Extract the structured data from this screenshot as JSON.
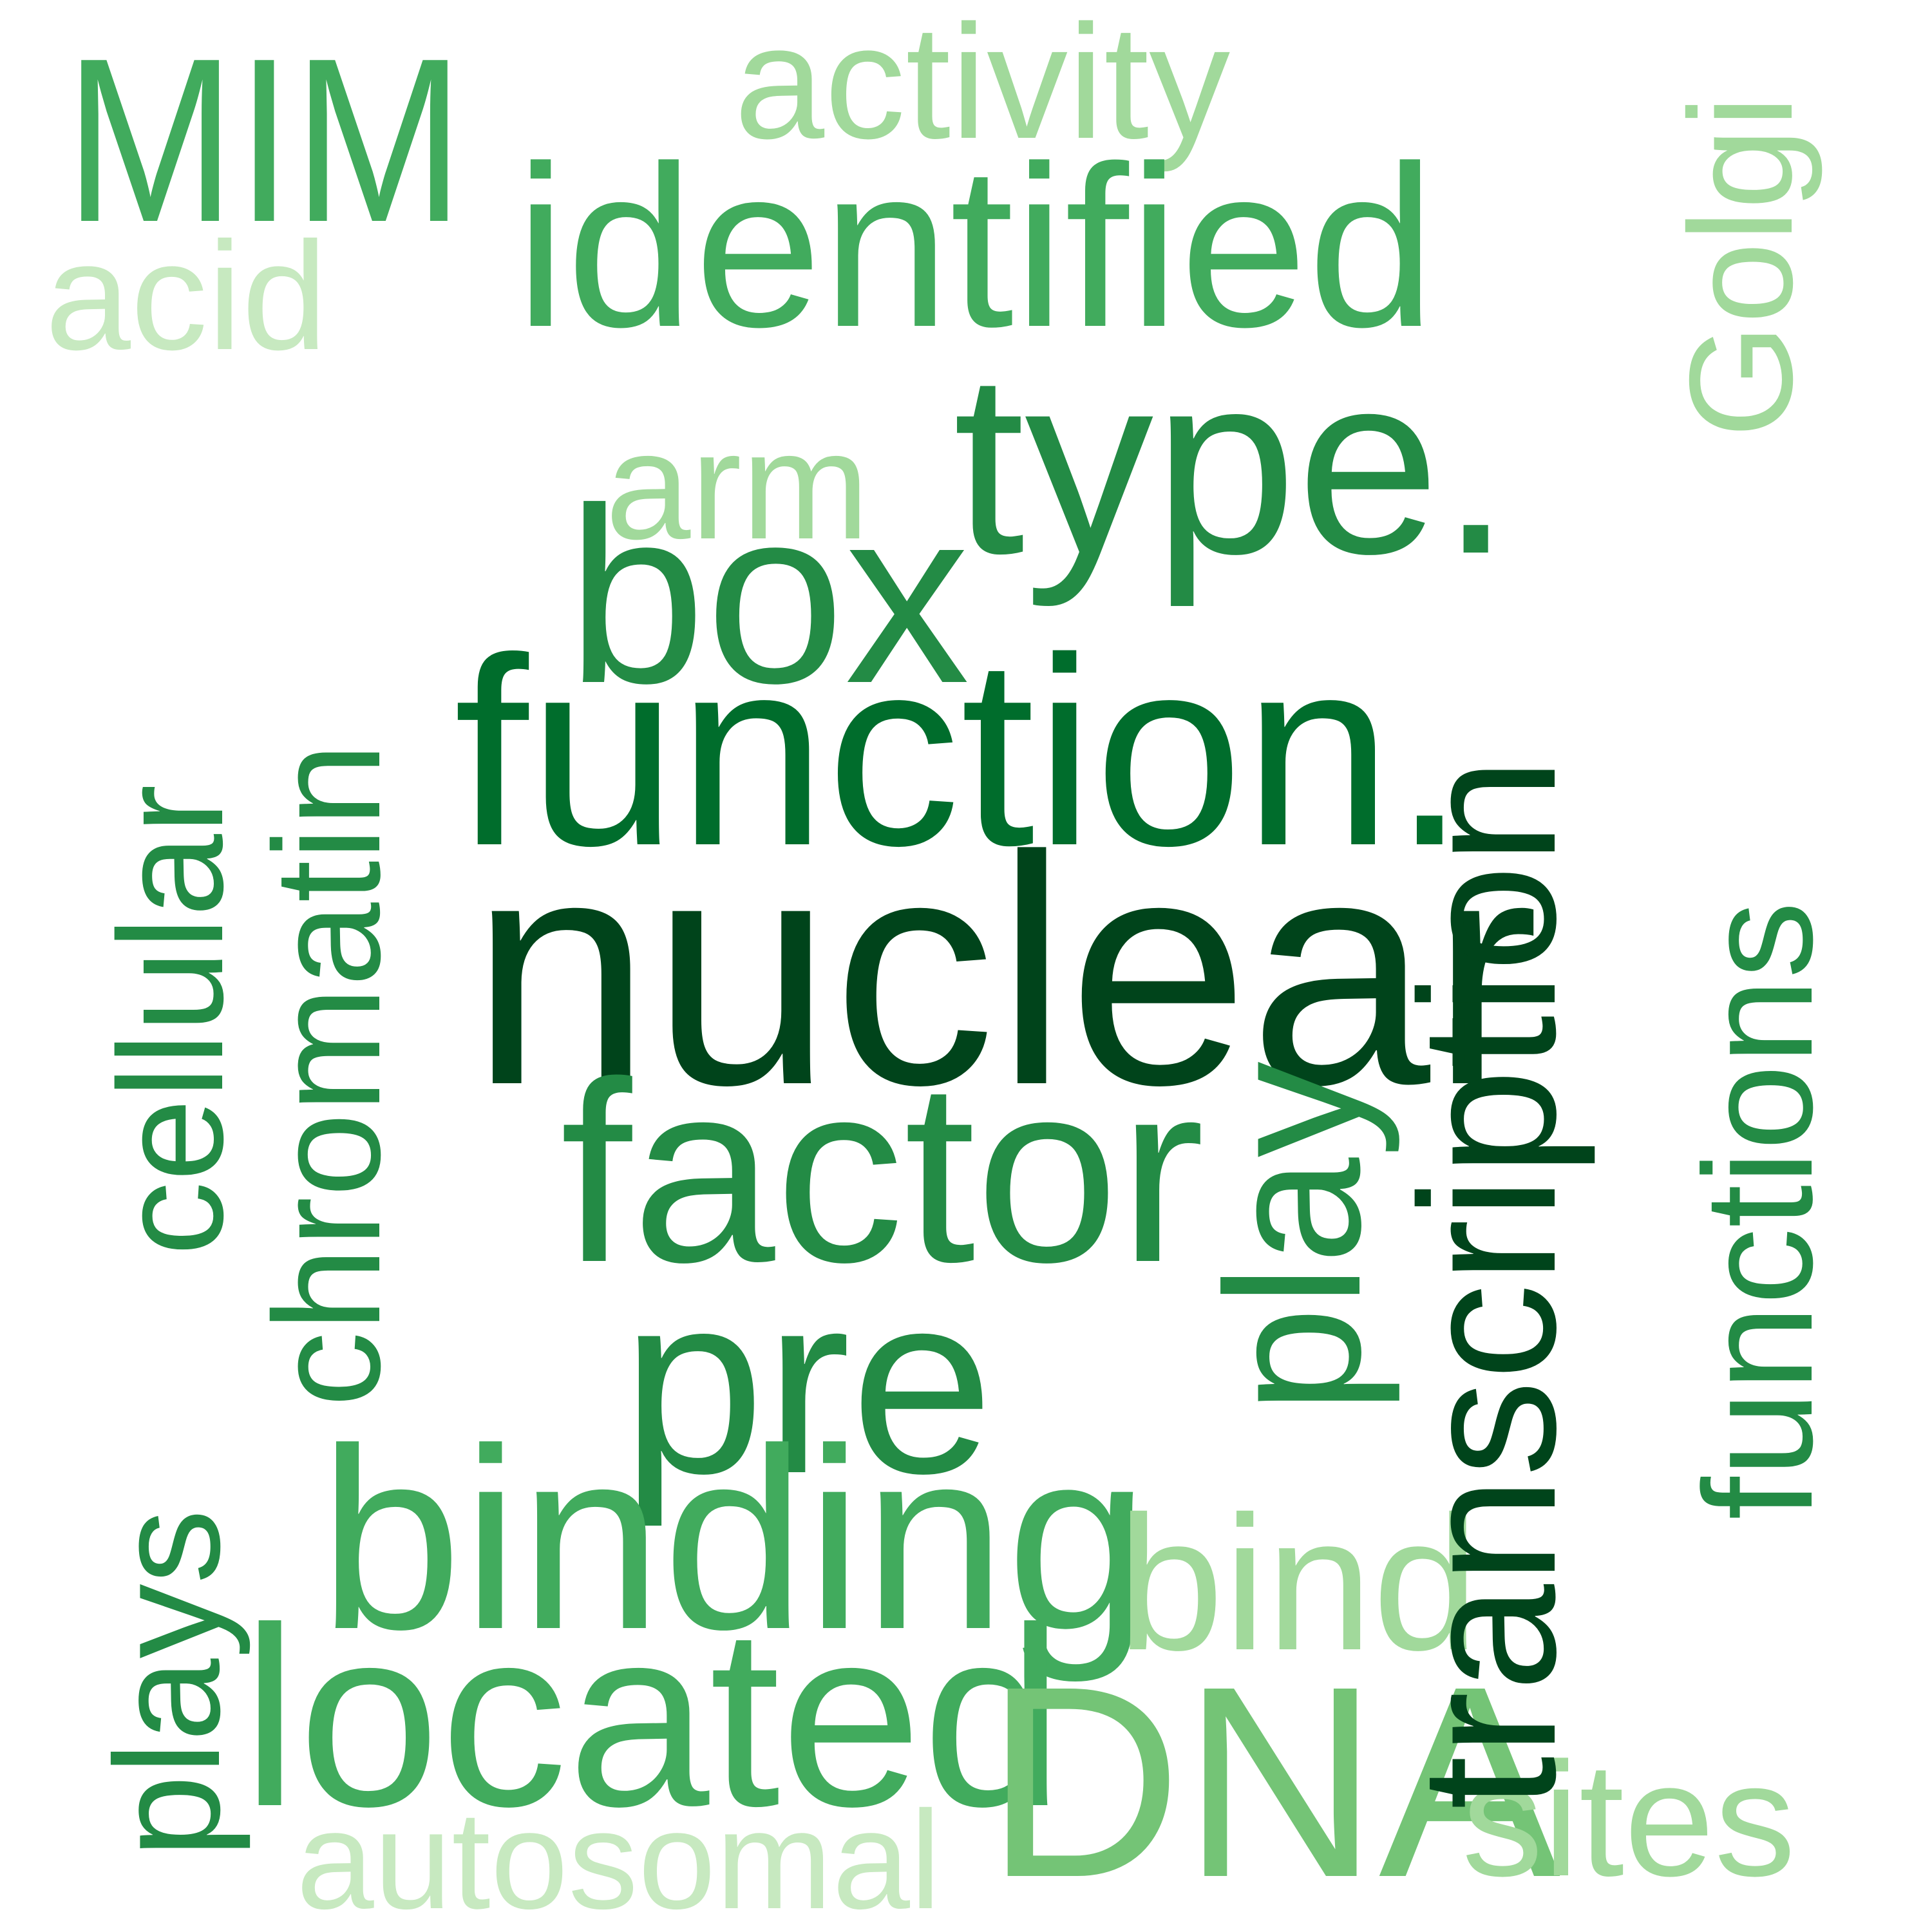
{
  "words": {
    "mim": {
      "text": "MIM",
      "color": "#41ab5d"
    },
    "activity": {
      "text": "activity",
      "color": "#a1d99b"
    },
    "golgi": {
      "text": "Golgi",
      "color": "#a1d99b"
    },
    "identified": {
      "text": "identified",
      "color": "#41ab5d"
    },
    "transcription": {
      "text": "transcription",
      "color": "#00441b"
    },
    "acid": {
      "text": "acid",
      "color": "#c7e9c0"
    },
    "chromatin": {
      "text": "chromatin",
      "color": "#238b45"
    },
    "cellular": {
      "text": "cellular",
      "color": "#238b45"
    },
    "arm": {
      "text": "arm",
      "color": "#a1d99b"
    },
    "type": {
      "text": "type.",
      "color": "#238b45"
    },
    "box": {
      "text": "box",
      "color": "#238b45"
    },
    "functions": {
      "text": "functions",
      "color": "#238b45"
    },
    "function": {
      "text": "function.",
      "color": "#006d2c"
    },
    "nuclear": {
      "text": "nuclear",
      "color": "#00441b"
    },
    "factor": {
      "text": "factor",
      "color": "#238b45"
    },
    "play": {
      "text": "play",
      "color": "#238b45"
    },
    "pre": {
      "text": "pre",
      "color": "#238b45"
    },
    "plays": {
      "text": "plays",
      "color": "#238b45"
    },
    "binding": {
      "text": "binding",
      "color": "#41ab5d"
    },
    "bind": {
      "text": "bind",
      "color": "#a1d99b"
    },
    "located": {
      "text": "located",
      "color": "#41ab5d"
    },
    "dna": {
      "text": "DNA",
      "color": "#74c476"
    },
    "sites": {
      "text": "sites",
      "color": "#a1d99b"
    },
    "autosomal": {
      "text": "autosomal",
      "color": "#c7e9c0"
    }
  }
}
